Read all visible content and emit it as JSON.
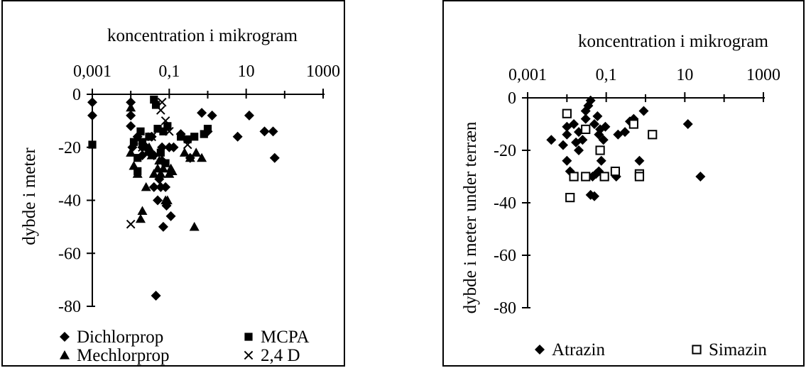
{
  "chart_data": [
    {
      "type": "scatter",
      "title": "koncentration i mikrogram",
      "xlabel": "koncentration i mikrogram",
      "ylabel": "dybde i meter",
      "x_scale": "log",
      "xlim": [
        0.001,
        1000
      ],
      "ylim": [
        -80,
        0
      ],
      "x_ticks": [
        "0,001",
        "0,1",
        "10",
        "1000"
      ],
      "y_ticks": [
        "0",
        "-20",
        "-40",
        "-60",
        "-80"
      ],
      "legend_position": "bottom",
      "series": [
        {
          "name": "Dichlorprop",
          "marker": "diamond-filled",
          "points": [
            [
              0.001,
              -3
            ],
            [
              0.001,
              -8
            ],
            [
              0.01,
              -3
            ],
            [
              0.01,
              -8
            ],
            [
              0.01,
              -12
            ],
            [
              0.011,
              -20
            ],
            [
              0.015,
              -16
            ],
            [
              0.02,
              -20
            ],
            [
              0.02,
              -23
            ],
            [
              0.025,
              -20
            ],
            [
              0.03,
              -22
            ],
            [
              0.035,
              -16
            ],
            [
              0.04,
              -23
            ],
            [
              0.04,
              -35
            ],
            [
              0.045,
              -76
            ],
            [
              0.05,
              -40
            ],
            [
              0.055,
              -32
            ],
            [
              0.06,
              -35
            ],
            [
              0.065,
              -20
            ],
            [
              0.065,
              -25
            ],
            [
              0.07,
              -50
            ],
            [
              0.08,
              -35
            ],
            [
              0.085,
              -42
            ],
            [
              0.1,
              -20
            ],
            [
              0.11,
              -46
            ],
            [
              0.13,
              -20
            ],
            [
              0.2,
              -15
            ],
            [
              0.35,
              -24
            ],
            [
              0.7,
              -7
            ],
            [
              1.0,
              -14
            ],
            [
              1.3,
              -8
            ],
            [
              6,
              -16
            ],
            [
              12,
              -8
            ],
            [
              30,
              -14
            ],
            [
              50,
              -14
            ],
            [
              55,
              -24
            ]
          ]
        },
        {
          "name": "MCPA",
          "marker": "square-filled",
          "points": [
            [
              0.001,
              -19
            ],
            [
              0.012,
              -18
            ],
            [
              0.015,
              -24
            ],
            [
              0.015,
              -29
            ],
            [
              0.018,
              -14
            ],
            [
              0.02,
              -18
            ],
            [
              0.03,
              -16
            ],
            [
              0.04,
              -2
            ],
            [
              0.045,
              -4
            ],
            [
              0.05,
              -13
            ],
            [
              0.06,
              -22
            ],
            [
              0.07,
              -14
            ],
            [
              0.08,
              -26
            ],
            [
              0.09,
              -12
            ],
            [
              0.2,
              -16
            ],
            [
              0.3,
              -17
            ],
            [
              0.45,
              -16
            ],
            [
              0.8,
              -15
            ],
            [
              1.0,
              -13
            ]
          ]
        },
        {
          "name": "Mechlorprop",
          "marker": "triangle-filled",
          "points": [
            [
              0.01,
              -5
            ],
            [
              0.01,
              -22
            ],
            [
              0.012,
              -27
            ],
            [
              0.015,
              -30
            ],
            [
              0.018,
              -47
            ],
            [
              0.02,
              -44
            ],
            [
              0.025,
              -35
            ],
            [
              0.03,
              -20
            ],
            [
              0.035,
              -23
            ],
            [
              0.04,
              -30
            ],
            [
              0.05,
              -28
            ],
            [
              0.055,
              -25
            ],
            [
              0.06,
              -30
            ],
            [
              0.07,
              -28
            ],
            [
              0.08,
              -40
            ],
            [
              0.09,
              -40
            ],
            [
              0.1,
              -30
            ],
            [
              0.11,
              -28
            ],
            [
              0.12,
              -29
            ],
            [
              0.25,
              -22
            ],
            [
              0.35,
              -24
            ],
            [
              0.45,
              -50
            ],
            [
              0.5,
              -22
            ],
            [
              0.7,
              -24
            ]
          ]
        },
        {
          "name": "2,4  D",
          "marker": "cross",
          "points": [
            [
              0.01,
              -49
            ],
            [
              0.02,
              -20
            ],
            [
              0.035,
              -16
            ],
            [
              0.05,
              -35
            ],
            [
              0.06,
              -6
            ],
            [
              0.065,
              -3
            ],
            [
              0.08,
              -10
            ],
            [
              0.1,
              -14
            ],
            [
              0.3,
              -19
            ]
          ]
        }
      ]
    },
    {
      "type": "scatter",
      "title": "koncentration i mikrogram",
      "xlabel": "koncentration i mikrogram",
      "ylabel": "dybde i meter under terræn",
      "x_scale": "log",
      "xlim": [
        0.001,
        1000
      ],
      "ylim": [
        -80,
        0
      ],
      "x_ticks": [
        "0,001",
        "0,1",
        "10",
        "1000"
      ],
      "y_ticks": [
        "0",
        "-20",
        "-40",
        "-60",
        "-80"
      ],
      "legend_position": "bottom",
      "series": [
        {
          "name": "Atrazin",
          "marker": "diamond-filled",
          "points": [
            [
              0.004,
              -16
            ],
            [
              0.008,
              -18
            ],
            [
              0.01,
              -14
            ],
            [
              0.01,
              -11
            ],
            [
              0.01,
              -24
            ],
            [
              0.012,
              -28
            ],
            [
              0.015,
              -10
            ],
            [
              0.017,
              -17
            ],
            [
              0.02,
              -20
            ],
            [
              0.02,
              -13
            ],
            [
              0.025,
              -16
            ],
            [
              0.03,
              -5
            ],
            [
              0.03,
              -8
            ],
            [
              0.035,
              -3
            ],
            [
              0.04,
              -1
            ],
            [
              0.04,
              -37
            ],
            [
              0.045,
              -30
            ],
            [
              0.05,
              -10
            ],
            [
              0.05,
              -37.5
            ],
            [
              0.055,
              -29
            ],
            [
              0.06,
              -7
            ],
            [
              0.065,
              -28
            ],
            [
              0.065,
              -14
            ],
            [
              0.07,
              -12
            ],
            [
              0.075,
              -24
            ],
            [
              0.085,
              -16
            ],
            [
              0.095,
              -11
            ],
            [
              0.18,
              -30
            ],
            [
              0.2,
              -14
            ],
            [
              0.3,
              -13
            ],
            [
              0.4,
              -9
            ],
            [
              0.5,
              -8
            ],
            [
              0.7,
              -24
            ],
            [
              0.9,
              -5
            ],
            [
              12,
              -10
            ],
            [
              25,
              -30
            ]
          ]
        },
        {
          "name": "Simazin",
          "marker": "square-open",
          "points": [
            [
              0.01,
              -6
            ],
            [
              0.012,
              -38
            ],
            [
              0.015,
              -30
            ],
            [
              0.03,
              -12
            ],
            [
              0.03,
              -30
            ],
            [
              0.07,
              -20
            ],
            [
              0.09,
              -30
            ],
            [
              0.17,
              -28
            ],
            [
              0.5,
              -10
            ],
            [
              0.7,
              -29
            ],
            [
              0.7,
              -30
            ],
            [
              1.5,
              -14
            ]
          ]
        }
      ]
    }
  ]
}
